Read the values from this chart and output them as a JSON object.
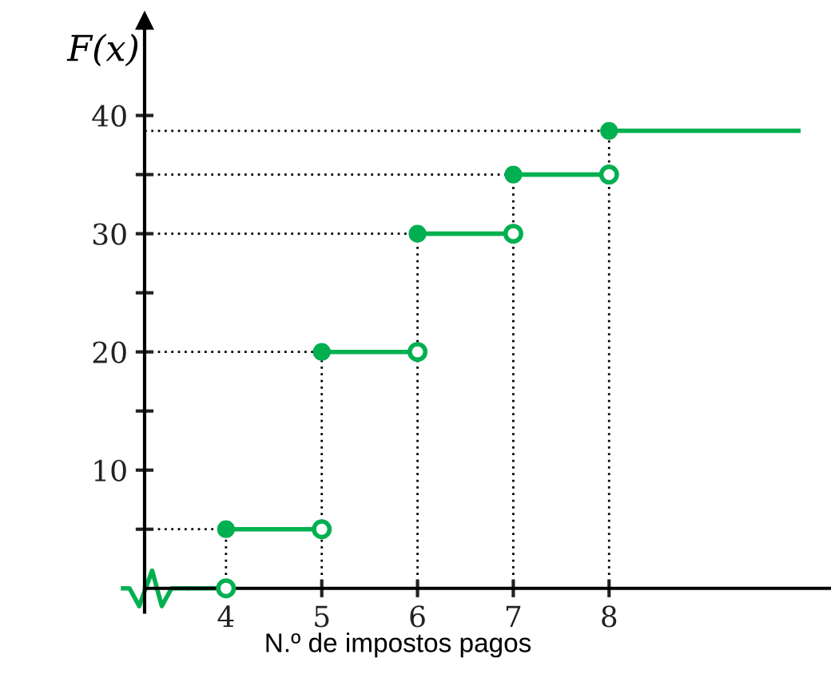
{
  "chart_data": {
    "type": "step",
    "xlabel": "N.º de impostos pagos",
    "ylabel": "F(x)",
    "x": [
      3.6,
      4,
      5,
      6,
      7,
      8,
      10
    ],
    "series": [
      {
        "color": "#00b050",
        "values": [
          0,
          5,
          20,
          30,
          35,
          38.7,
          38.7
        ]
      }
    ],
    "marker": "circle",
    "ref_lines": [
      {
        "axis": "x",
        "value": 4,
        "color": "#000000",
        "line_style": "dotted"
      },
      {
        "axis": "x",
        "value": 5,
        "color": "#000000",
        "line_style": "dotted"
      },
      {
        "axis": "x",
        "value": 6,
        "color": "#000000",
        "line_style": "dotted"
      },
      {
        "axis": "x",
        "value": 7,
        "color": "#000000",
        "line_style": "dotted"
      },
      {
        "axis": "x",
        "value": 8,
        "color": "#000000",
        "line_style": "dotted"
      },
      {
        "axis": "y",
        "value": 5,
        "color": "#000000",
        "line_style": "dotted"
      },
      {
        "axis": "y",
        "value": 20,
        "color": "#000000",
        "line_style": "dotted"
      },
      {
        "axis": "y",
        "value": 30,
        "color": "#000000",
        "line_style": "dotted"
      },
      {
        "axis": "y",
        "value": 35,
        "color": "#000000",
        "line_style": "dotted"
      },
      {
        "axis": "y",
        "value": 38.7,
        "color": "#000000",
        "line_style": "dotted"
      }
    ],
    "xlim": [
      3.15,
      10.3
    ],
    "ylim": [
      -2,
      48
    ],
    "xticks": [
      4,
      5,
      6,
      7,
      8
    ],
    "yticks": [
      {
        "value": 5,
        "label": null
      },
      10,
      {
        "value": 15,
        "label": null
      },
      20,
      {
        "value": 25,
        "label": null
      },
      30,
      {
        "value": 35,
        "label": null
      },
      40
    ]
  }
}
